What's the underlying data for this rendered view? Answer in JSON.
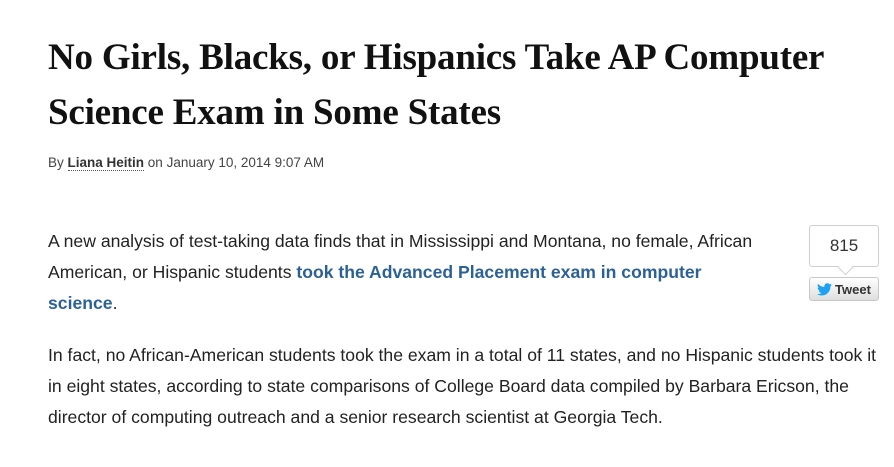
{
  "article": {
    "headline": "No Girls, Blacks, or Hispanics Take AP Computer Science Exam in Some States",
    "byline": {
      "prefix": "By ",
      "author": "Liana Heitin",
      "date_prefix": " on ",
      "date": "January 10, 2014 9:07 AM"
    },
    "paragraph1": {
      "text_before": "A new analysis of test-taking data finds that in Mississippi and Montana, no female, African American, or Hispanic students ",
      "link_text": "took the Advanced Placement exam in computer science",
      "text_after": "."
    },
    "paragraph2": "In fact, no African-American students took the exam in a total of 11 states, and no Hispanic students took it in eight states, according to state comparisons of College Board data compiled by Barbara Ericson, the director of computing outreach and a senior research scientist at Georgia Tech."
  },
  "share": {
    "tweet_count": "815",
    "tweet_label": "Tweet",
    "tweet_icon": "twitter-bird-icon"
  },
  "colors": {
    "link": "#2c6197",
    "twitter_blue": "#1da1f2"
  }
}
